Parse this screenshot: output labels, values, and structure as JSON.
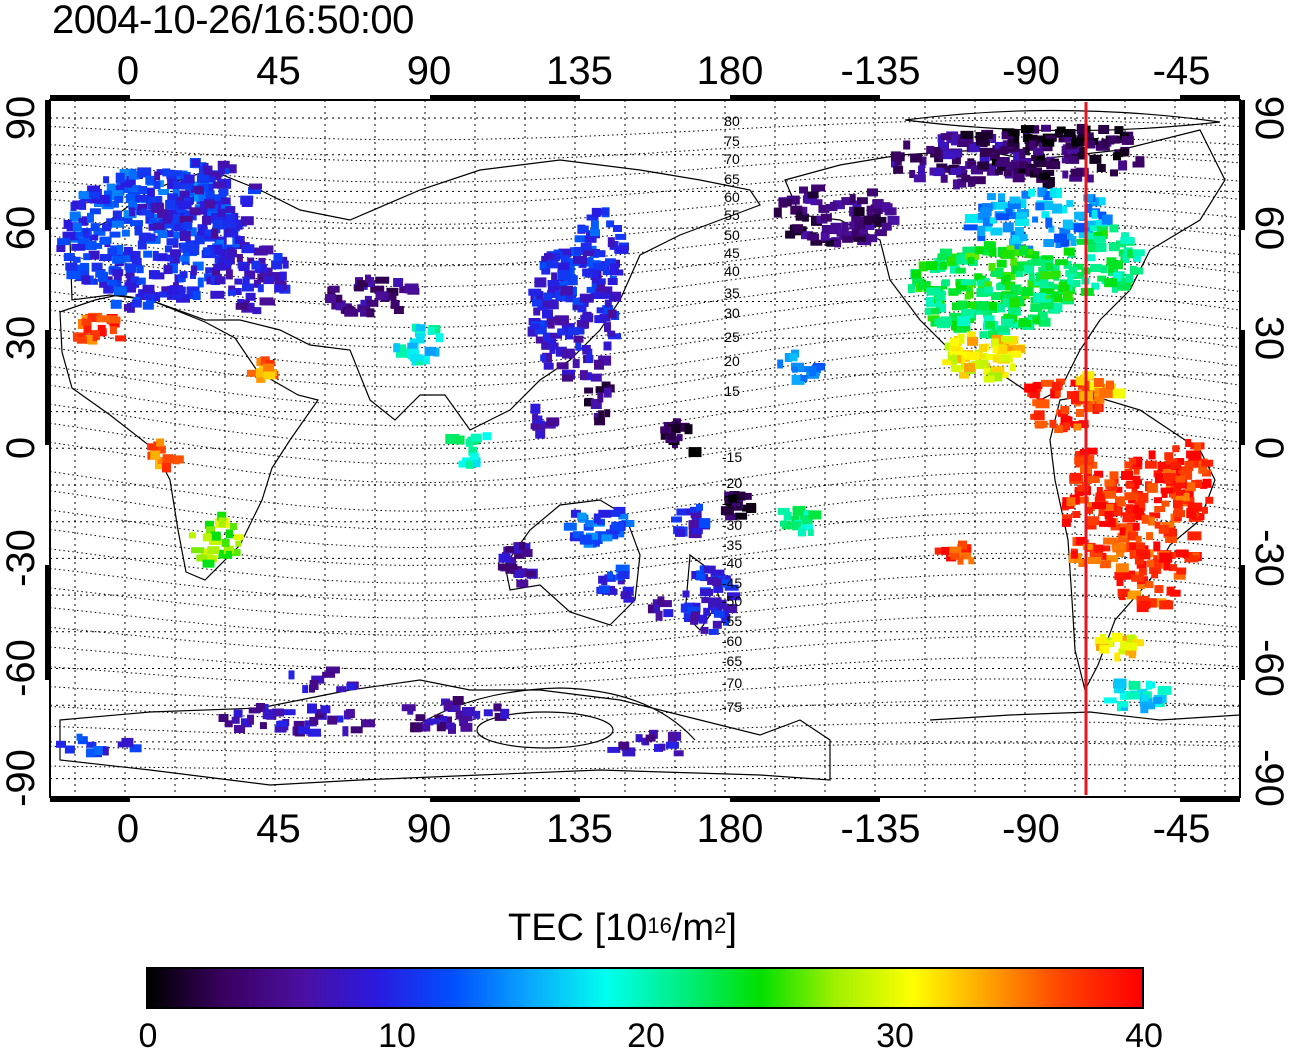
{
  "title": "2004-10-26/16:50:00",
  "map": {
    "top_lon_labels": [
      "0",
      "45",
      "90",
      "135",
      "180",
      "-135",
      "-90",
      "-45"
    ],
    "bottom_lon_labels": [
      "0",
      "45",
      "90",
      "135",
      "180",
      "-135",
      "-90",
      "-45"
    ],
    "left_lat_labels": [
      "90",
      "60",
      "30",
      "0",
      "-30",
      "-60",
      "-90"
    ],
    "right_lat_labels": [
      "90",
      "60",
      "30",
      "0",
      "-30",
      "-60",
      "-90"
    ],
    "magnetic_latitude_labels": [
      "80",
      "75",
      "70",
      "65",
      "60",
      "55",
      "50",
      "45",
      "40",
      "35",
      "30",
      "25",
      "20",
      "15",
      "-15",
      "-20",
      "-25",
      "-30",
      "-35",
      "-40",
      "-45",
      "-50",
      "-55",
      "-60",
      "-65",
      "-70",
      "-75"
    ],
    "marker_color": "#e8141e"
  },
  "colorbar": {
    "title_main": "TEC  [10",
    "title_exp1": "16",
    "title_mid": "/m",
    "title_exp2": "2",
    "title_end": "]",
    "ticks": [
      "0",
      "10",
      "20",
      "30",
      "40"
    ],
    "range": [
      0,
      40
    ],
    "colors": [
      "#000000",
      "#3a0060",
      "#4b0fa0",
      "#2a1ae0",
      "#0050ff",
      "#0aa8ff",
      "#00ffee",
      "#00ee80",
      "#00e000",
      "#a0f000",
      "#ffff00",
      "#ffa000",
      "#ff4000",
      "#ff0000"
    ]
  }
}
